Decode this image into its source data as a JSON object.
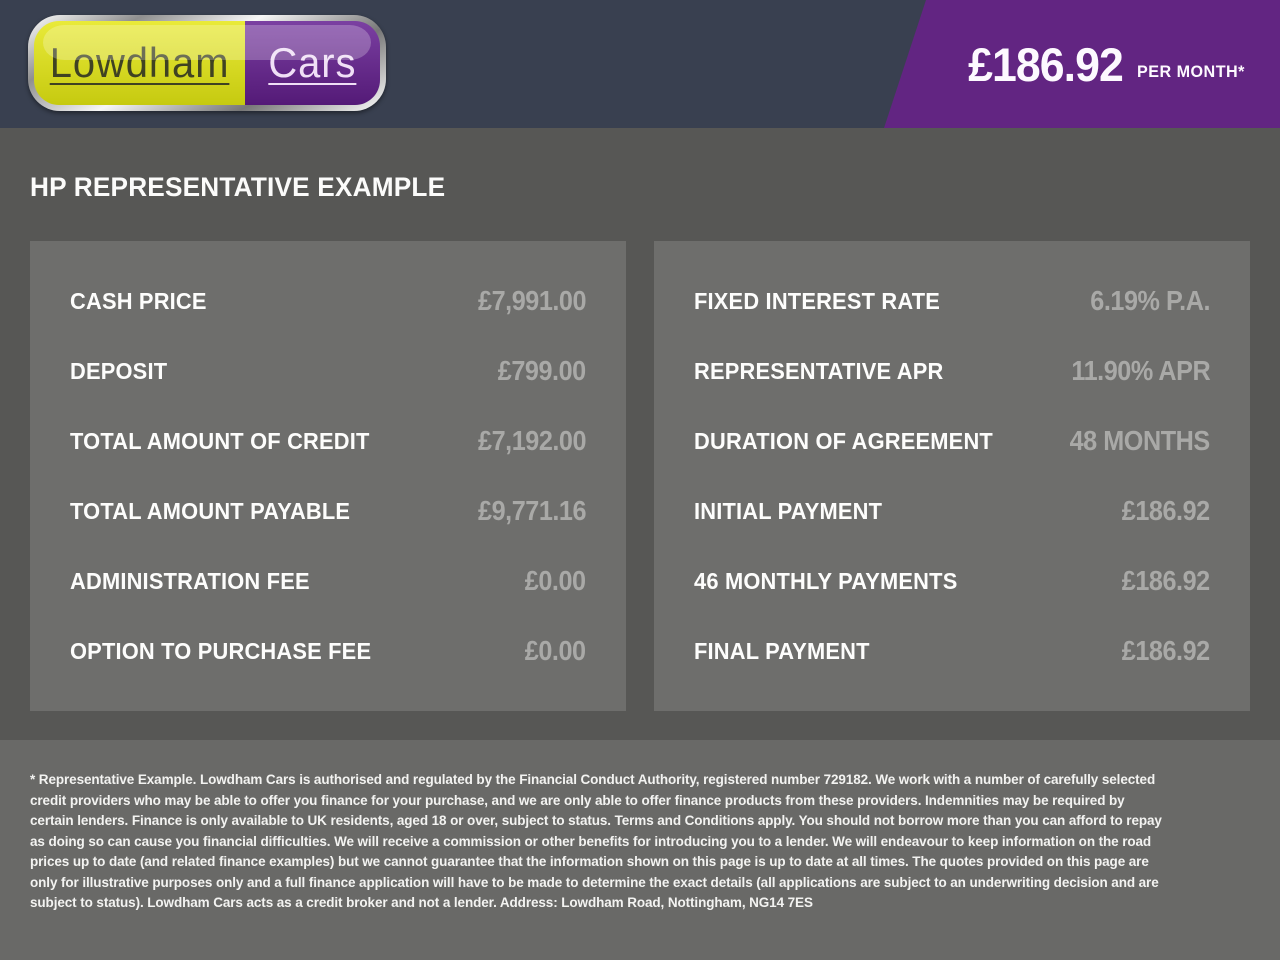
{
  "header": {
    "logo": {
      "part1": "Lowdham",
      "part2": "Cars"
    },
    "price_badge": {
      "amount": "£186.92",
      "period": "PER MONTH*"
    }
  },
  "page_title": "HP REPRESENTATIVE EXAMPLE",
  "panels": {
    "left": {
      "rows": [
        {
          "label": "CASH PRICE",
          "value": "£7,991.00"
        },
        {
          "label": "DEPOSIT",
          "value": "£799.00"
        },
        {
          "label": "TOTAL AMOUNT OF CREDIT",
          "value": "£7,192.00"
        },
        {
          "label": "TOTAL AMOUNT PAYABLE",
          "value": "£9,771.16"
        },
        {
          "label": "ADMINISTRATION FEE",
          "value": "£0.00"
        },
        {
          "label": "OPTION TO PURCHASE FEE",
          "value": "£0.00"
        }
      ]
    },
    "right": {
      "rows": [
        {
          "label": "FIXED INTEREST RATE",
          "value": "6.19% P.A."
        },
        {
          "label": "REPRESENTATIVE APR",
          "value": "11.90% APR"
        },
        {
          "label": "DURATION OF AGREEMENT",
          "value": "48 MONTHS"
        },
        {
          "label": "INITIAL PAYMENT",
          "value": "£186.92"
        },
        {
          "label": "46 MONTHLY PAYMENTS",
          "value": "£186.92"
        },
        {
          "label": "FINAL PAYMENT",
          "value": "£186.92"
        }
      ]
    }
  },
  "footer": {
    "disclaimer": "* Representative Example. Lowdham Cars is authorised and regulated by the Financial Conduct Authority, registered number 729182. We work with a number of carefully selected credit providers who may be able to offer you finance for your purchase, and we are only able to offer finance products from these providers. Indemnities may be required by certain lenders. Finance is only available to UK residents, aged 18 or over, subject to status. Terms and Conditions apply. You should not borrow more than you can afford to repay as doing so can cause you financial difficulties. We will receive a commission or other benefits for introducing you to a lender. We will endeavour to keep information on the road prices up to date (and related finance examples) but we cannot guarantee that the information shown on this page is up to date at all times. The quotes provided on this page are only for illustrative purposes only and a full finance application will have to be made to determine the exact details (all applications are subject to an underwriting decision and are subject to status). Lowdham Cars acts as a credit broker and not a lender. Address: Lowdham Road, Nottingham, NG14 7ES"
  },
  "colors": {
    "header_navy": "#394050",
    "brand_purple": "#622582",
    "brand_yellow": "#dde02a",
    "page_background": "#575755",
    "panel_background": "#6e6e6c",
    "footer_background": "#696967",
    "value_gray": "#a9a9a7"
  }
}
